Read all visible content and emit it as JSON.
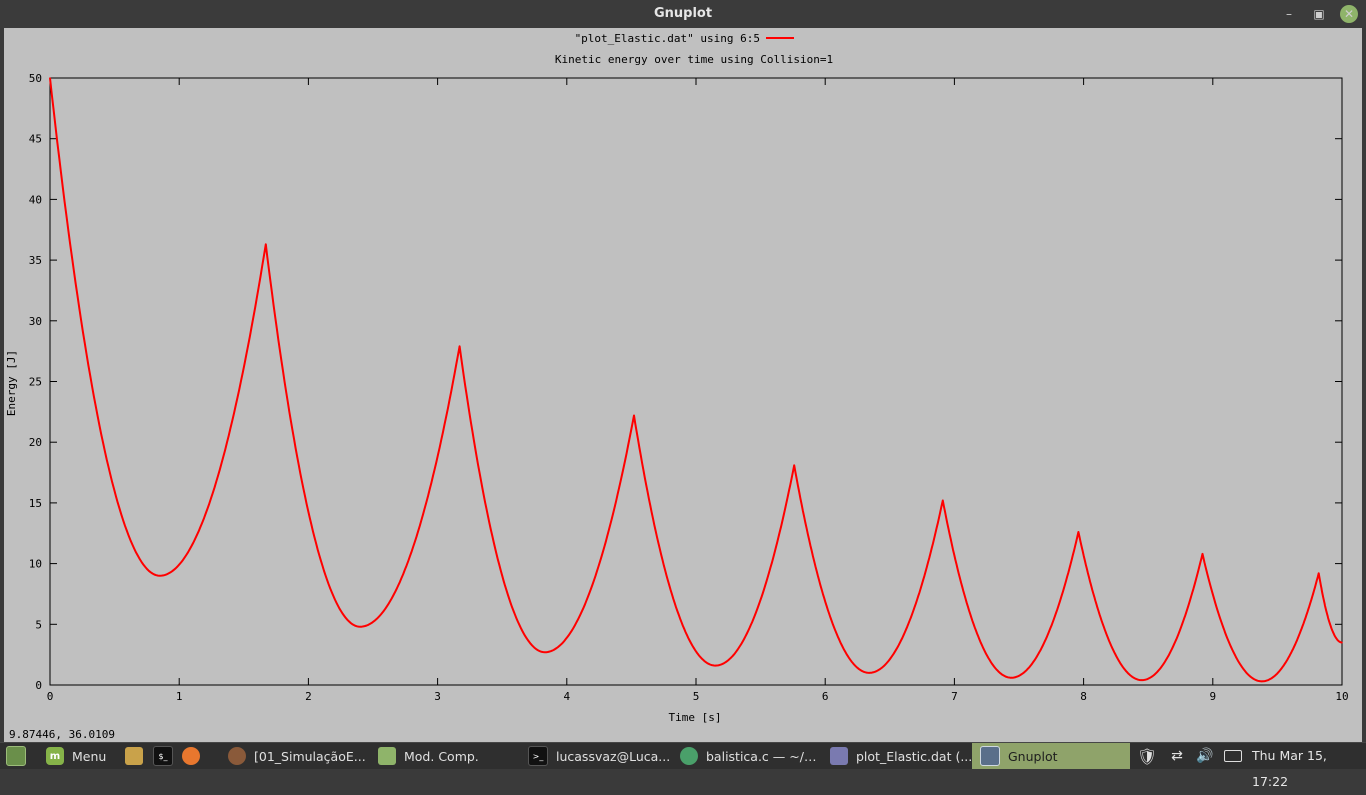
{
  "window": {
    "title": "Gnuplot"
  },
  "plot": {
    "legend_label": "\"plot_Elastic.dat\" using 6:5",
    "line_color": "#ff0000"
  },
  "status": {
    "coords": "9.87446,  36.0109"
  },
  "taskbar": {
    "menu_label": "Menu",
    "tasks": [
      {
        "label": "[01_SimulaçãoE...",
        "icon": "firefox-icon"
      },
      {
        "label": "Mod. Comp.",
        "icon": "folder-icon"
      },
      {
        "label": "lucassvaz@Luca...",
        "icon": "terminal-icon"
      },
      {
        "label": "balistica.c — ~/D...",
        "icon": "editor-icon"
      },
      {
        "label": "plot_Elastic.dat (...",
        "icon": "text-file-icon"
      },
      {
        "label": "Gnuplot",
        "icon": "window-icon"
      }
    ],
    "clock": "Thu Mar 15, 17:22",
    "accent_color": "#8fa36a"
  },
  "chart_data": {
    "type": "line",
    "title": "Kinetic energy over time using Collision=1",
    "xlabel": "Time [s]",
    "ylabel": "Energy [J]",
    "xlim": [
      0,
      10
    ],
    "ylim": [
      0,
      50
    ],
    "xticks": [
      "0",
      "1",
      "2",
      "3",
      "4",
      "5",
      "6",
      "7",
      "8",
      "9",
      "10"
    ],
    "yticks": [
      "0",
      "5",
      "10",
      "15",
      "20",
      "25",
      "30",
      "35",
      "40",
      "45",
      "50"
    ],
    "grid": false,
    "legend_position": "top-center",
    "series": [
      {
        "name": "\"plot_Elastic.dat\" using 6:5",
        "color": "#ff0000",
        "x": [
          0,
          0.85,
          1.67,
          2.4,
          3.17,
          3.83,
          4.52,
          5.15,
          5.76,
          6.34,
          6.91,
          7.44,
          7.96,
          8.45,
          8.92,
          9.38,
          9.82,
          10
        ],
        "y": [
          50,
          9,
          36.3,
          4.8,
          27.9,
          2.7,
          22.2,
          1.6,
          18.1,
          1.0,
          15.2,
          0.6,
          12.6,
          0.4,
          10.8,
          0.3,
          9.2,
          3.5
        ]
      }
    ]
  }
}
